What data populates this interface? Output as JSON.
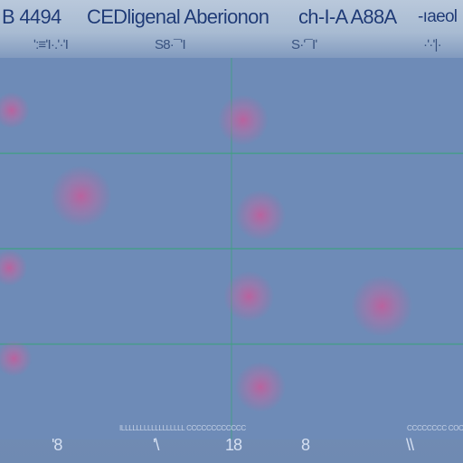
{
  "header": {
    "title_left": "B 4494",
    "title_mid": "CEDligenal Aberionon",
    "title_right": "ch-I-A A88A",
    "title_far_right": "-ıaeol",
    "scribble_1": "ʹ:≡ʹI·.ʹ·ʹI",
    "scribble_2": "S8·¯ʹI",
    "scribble_3": "S·ʹ¯Iʹ",
    "scribble_4": "·ʹ·ʹ|·"
  },
  "footer": {
    "small_1": "ILLLLLLLLLLLLLLLLL CCCCCCCCCCCC",
    "small_2": "CCCCCCCC COCCCCC",
    "ticks": [
      "'8",
      "'\\",
      "18",
      "8",
      "\\\\"
    ]
  },
  "chart_data": {
    "type": "scatter",
    "title": "B 4494  CEDligenal Aberionon  ch-I-A A88A  -ıaeol",
    "xlabel": "",
    "ylabel": "",
    "xlim": [
      0,
      4
    ],
    "ylim": [
      0,
      4
    ],
    "grid": true,
    "colors": {
      "background": "#6f8ab2",
      "gridline": "#41a083",
      "point": "#c35d9b"
    },
    "series": [
      {
        "values": [
          {
            "x": 0.1,
            "y": 3.45
          },
          {
            "x": 0.7,
            "y": 2.55
          },
          {
            "x": 0.08,
            "y": 1.8
          },
          {
            "x": 0.12,
            "y": 0.85
          },
          {
            "x": 2.1,
            "y": 3.35
          },
          {
            "x": 2.25,
            "y": 2.35
          },
          {
            "x": 2.15,
            "y": 1.5
          },
          {
            "x": 3.3,
            "y": 1.4
          },
          {
            "x": 2.25,
            "y": 0.55
          }
        ]
      }
    ]
  }
}
